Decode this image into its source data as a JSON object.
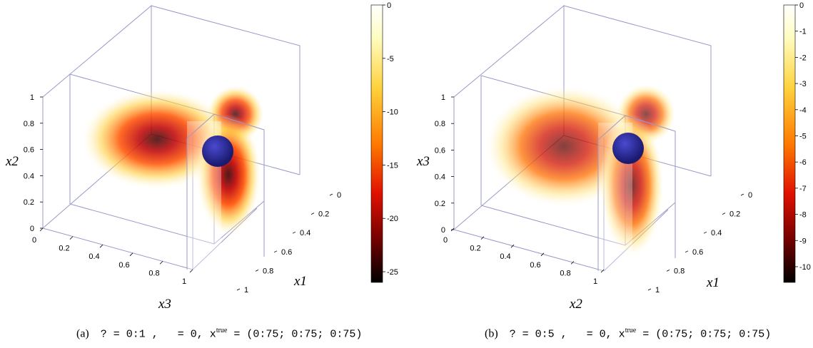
{
  "panels": [
    {
      "id": "a",
      "axes": {
        "xlabel_left": "x3",
        "ylabel": "x2",
        "xlabel_right": "x1",
        "left_ticks": [
          "0",
          "0.2",
          "0.4",
          "0.6",
          "0.8",
          "1"
        ],
        "right_ticks": [
          "0",
          "0.2",
          "0.4",
          "0.6",
          "0.8",
          "1"
        ],
        "vertical_ticks": [
          "0",
          "0.2",
          "0.4",
          "0.6",
          "0.8",
          "1"
        ]
      },
      "colorbar": {
        "ticks": [
          "0",
          "-5",
          "-10",
          "-15",
          "-20",
          "-25"
        ],
        "range": [
          -26,
          0
        ]
      },
      "caption": {
        "label": "(a)",
        "part1": "? = 0:1",
        "part2": " ,   = 0, x",
        "sup": "true",
        "part3": " = (0:75; 0:75; 0:75)"
      }
    },
    {
      "id": "b",
      "axes": {
        "xlabel_left": "x2",
        "ylabel": "x3",
        "xlabel_right": "x1",
        "left_ticks": [
          "0",
          "0.2",
          "0.4",
          "0.6",
          "0.8",
          "1"
        ],
        "right_ticks": [
          "0",
          "0.2",
          "0.4",
          "0.6",
          "0.8",
          "1"
        ],
        "vertical_ticks": [
          "0",
          "0.2",
          "0.4",
          "0.6",
          "0.8",
          "1"
        ]
      },
      "colorbar": {
        "ticks": [
          "0",
          "-1",
          "-2",
          "-3",
          "-4",
          "-5",
          "-6",
          "-7",
          "-8",
          "-9",
          "-10"
        ],
        "range": [
          -10.6,
          0
        ]
      },
      "caption": {
        "label": "(b)",
        "part1": "? = 0:5",
        "part2": " ,   = 0, x",
        "sup": "true",
        "part3": " = (0:75; 0:75; 0:75)"
      }
    }
  ],
  "colors": {
    "hot_high": "#000000",
    "hot_mid": "#c80000",
    "hot_low": "#ffe060",
    "inclusion": "#2a2a9a",
    "box_edge": "#9a9ac8"
  }
}
